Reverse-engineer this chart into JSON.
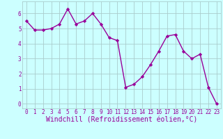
{
  "x": [
    0,
    1,
    2,
    3,
    4,
    5,
    6,
    7,
    8,
    9,
    10,
    11,
    12,
    13,
    14,
    15,
    16,
    17,
    18,
    19,
    20,
    21,
    22,
    23
  ],
  "y": [
    5.5,
    4.9,
    4.9,
    5.0,
    5.3,
    6.3,
    5.3,
    5.5,
    6.0,
    5.3,
    4.4,
    4.2,
    1.1,
    1.3,
    1.8,
    2.6,
    3.5,
    4.5,
    4.6,
    3.5,
    3.0,
    3.3,
    1.1,
    0.0
  ],
  "line_color": "#990099",
  "marker": "D",
  "marker_size": 2.2,
  "bg_color": "#ccffff",
  "grid_color": "#aacccc",
  "xlabel": "Windchill (Refroidissement éolien,°C)",
  "xlabel_color": "#990099",
  "ylim": [
    -0.3,
    6.8
  ],
  "xlim": [
    -0.5,
    23.5
  ],
  "yticks": [
    0,
    1,
    2,
    3,
    4,
    5,
    6
  ],
  "xticks": [
    0,
    1,
    2,
    3,
    4,
    5,
    6,
    7,
    8,
    9,
    10,
    11,
    12,
    13,
    14,
    15,
    16,
    17,
    18,
    19,
    20,
    21,
    22,
    23
  ],
  "tick_fontsize": 5.5,
  "xlabel_fontsize": 7.0,
  "linewidth": 1.0
}
